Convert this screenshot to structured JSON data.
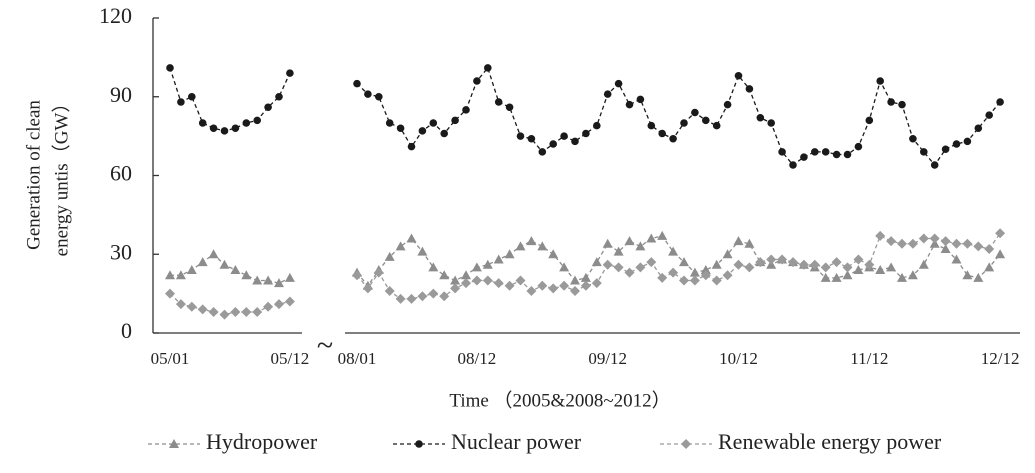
{
  "chart_data": {
    "type": "line",
    "y_label": [
      "Generation of clean",
      "energy untis（GW）"
    ],
    "x_label": "Time （2005&2008~2012）",
    "axis_break": "~",
    "categories": [
      "05/01",
      null,
      null,
      null,
      null,
      null,
      null,
      null,
      null,
      null,
      null,
      "05/12",
      null,
      "08/01",
      null,
      null,
      null,
      null,
      null,
      null,
      null,
      null,
      null,
      null,
      "08/12",
      null,
      null,
      null,
      null,
      null,
      null,
      null,
      null,
      null,
      null,
      null,
      "09/12",
      null,
      null,
      null,
      null,
      null,
      null,
      null,
      null,
      null,
      null,
      null,
      "10/12",
      null,
      null,
      null,
      null,
      null,
      null,
      null,
      null,
      null,
      null,
      null,
      "11/12",
      null,
      null,
      null,
      null,
      null,
      null,
      null,
      null,
      null,
      null,
      null,
      "12/12"
    ],
    "ylim": [
      0,
      120
    ],
    "yticks": [
      0,
      30,
      60,
      90,
      120
    ],
    "series": [
      {
        "name": "Hydropower",
        "color": "#8c8c8c",
        "marker": "triangle",
        "values": [
          22,
          22,
          24,
          27,
          30,
          26,
          24,
          22,
          20,
          20,
          19,
          21,
          null,
          23,
          18,
          24,
          29,
          33,
          36,
          31,
          25,
          22,
          20,
          22,
          25,
          26,
          28,
          30,
          33,
          35,
          33,
          30,
          25,
          20,
          21,
          27,
          34,
          31,
          35,
          33,
          36,
          37,
          31,
          27,
          23,
          24,
          26,
          30,
          35,
          34,
          27,
          26,
          28,
          27,
          26,
          25,
          21,
          21,
          22,
          24,
          25,
          24,
          25,
          21,
          22,
          26,
          34,
          32,
          28,
          22,
          21,
          25,
          30
        ]
      },
      {
        "name": "Nuclear power",
        "color": "#1a1a1a",
        "marker": "circle",
        "values": [
          101,
          88,
          90,
          80,
          78,
          77,
          78,
          80,
          81,
          86,
          90,
          99,
          null,
          95,
          91,
          90,
          80,
          78,
          71,
          77,
          80,
          76,
          81,
          85,
          96,
          101,
          88,
          86,
          75,
          74,
          69,
          72,
          75,
          73,
          76,
          79,
          91,
          95,
          87,
          89,
          79,
          76,
          74,
          80,
          84,
          81,
          79,
          87,
          98,
          93,
          82,
          80,
          69,
          64,
          67,
          69,
          69,
          68,
          68,
          71,
          81,
          96,
          88,
          87,
          74,
          69,
          64,
          70,
          72,
          73,
          78,
          83,
          88
        ]
      },
      {
        "name": "Renewable energy power",
        "color": "#9a9a9a",
        "marker": "diamond",
        "values": [
          15,
          11,
          10,
          9,
          8,
          7,
          8,
          8,
          8,
          10,
          11,
          12,
          null,
          22,
          17,
          23,
          16,
          13,
          13,
          14,
          15,
          14,
          17,
          19,
          20,
          20,
          19,
          18,
          20,
          16,
          18,
          17,
          18,
          16,
          18,
          19,
          26,
          25,
          23,
          25,
          27,
          21,
          23,
          20,
          20,
          22,
          20,
          22,
          26,
          25,
          27,
          28,
          28,
          27,
          26,
          26,
          25,
          27,
          25,
          28,
          26,
          37,
          35,
          34,
          34,
          36,
          36,
          35,
          34,
          34,
          33,
          32,
          38
        ]
      }
    ]
  }
}
